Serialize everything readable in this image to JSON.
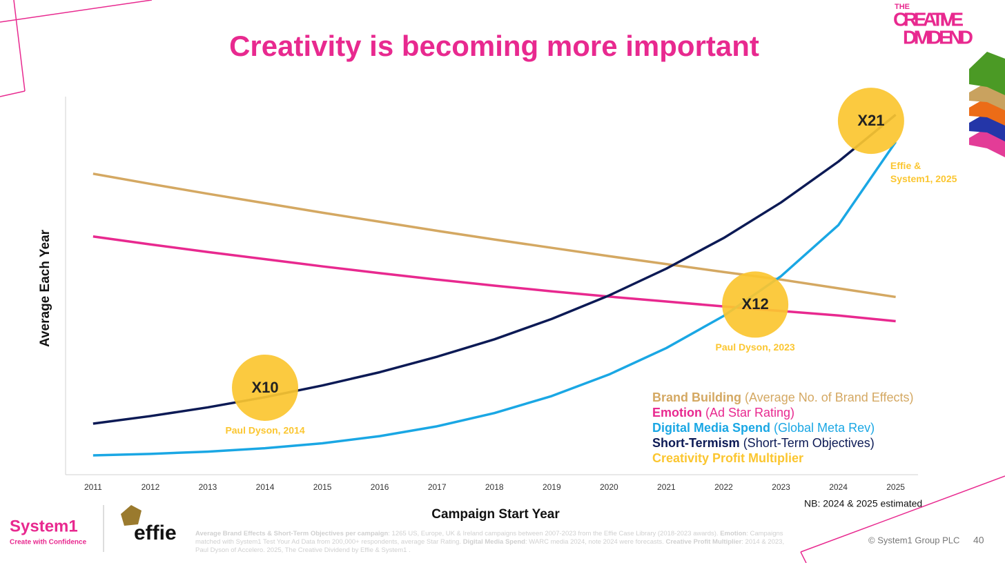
{
  "chart_data": {
    "type": "line",
    "title": "Creativity is becoming more important",
    "x_label": "Campaign Start Year",
    "y_label": "Average Each Year",
    "x": [
      2011,
      2012,
      2013,
      2014,
      2015,
      2016,
      2017,
      2018,
      2019,
      2020,
      2021,
      2022,
      2023,
      2024,
      2025
    ],
    "xlim": [
      2010.52,
      2025.39
    ],
    "xticks": [
      2011,
      2012,
      2013,
      2014,
      2015,
      2016,
      2017,
      2018,
      2019,
      2020,
      2021,
      2022,
      2023,
      2024,
      2025
    ],
    "ylim": [
      0,
      100
    ],
    "series": [
      {
        "name": "Brand Building",
        "measure": "(Average No. of Brand Effects)",
        "color": "#d4a862",
        "values": [
          79.6,
          76.9,
          74.3,
          71.8,
          69.3,
          66.9,
          64.5,
          62.2,
          60,
          57.8,
          55.7,
          53.6,
          51.6,
          49.3,
          47
        ]
      },
      {
        "name": "Emotion",
        "measure": "(Ad Star Rating)",
        "color": "#e8298f",
        "values": [
          63,
          60.9,
          58.9,
          57,
          55.1,
          53.3,
          51.6,
          50,
          48.5,
          47.1,
          45.8,
          44.5,
          43.3,
          42.1,
          40.6
        ]
      },
      {
        "name": "Digital Media Spend",
        "measure": "(Global Meta Rev)",
        "color": "#1aa7e4",
        "values": [
          5.1,
          5.5,
          6.1,
          7,
          8.3,
          10.2,
          12.8,
          16.3,
          20.8,
          26.5,
          33.5,
          42,
          52.5,
          66,
          88
        ]
      },
      {
        "name": "Short-Termism",
        "measure": "(Short-Term Objectives)",
        "color": "#0c1a55",
        "values": [
          13.5,
          15.5,
          17.8,
          20.5,
          23.6,
          27.1,
          31.2,
          35.8,
          41.2,
          47.4,
          54.5,
          62.6,
          72,
          82.8,
          95.2
        ]
      }
    ],
    "multiplier": {
      "name": "Creativity Profit Multiplier",
      "color": "#fbc630",
      "points": [
        {
          "x": 2014,
          "y": 23,
          "label": "X10",
          "source": "Paul Dyson, 2014"
        },
        {
          "x": 2022.55,
          "y": 45,
          "label": "X12",
          "source": "Paul Dyson, 2023"
        },
        {
          "x": 2024.57,
          "y": 93.6,
          "label": "X21",
          "source": "Effie & System1, 2025"
        }
      ]
    },
    "note": "NB: 2024 & 2025 estimated"
  },
  "logo": {
    "line1": "THE",
    "line2": "CREATIVE",
    "line3": "DIVIDEND"
  },
  "footer": {
    "brand": "System1",
    "tagline": "Create with Confidence",
    "partner": "effie",
    "sources": [
      {
        "text": "Average Brand Effects & Short-Term Objectives per campaign",
        "bold": true
      },
      {
        "text": ": 1265 US, Europe, UK & Ireland campaigns between 2007-2023 from the Effie Case Library (2018-2023 awards). ",
        "bold": false
      },
      {
        "text": "Emotion",
        "bold": true
      },
      {
        "text": ": Campaigns matched with System1 Test Your Ad Data from 200,000+ respondents, average Star Rating. ",
        "bold": false
      },
      {
        "text": "Digital Media Spend",
        "bold": true
      },
      {
        "text": ": WARC media 2024, note 2024 were forecasts. ",
        "bold": false
      },
      {
        "text": "Creative Profit Multiplier",
        "bold": true
      },
      {
        "text": ": 2014 & 2023, Paul Dyson of Accelero. 2025, The Creative Dividend by Effie & System1 .",
        "bold": false
      }
    ],
    "copyright": "© System1 Group PLC",
    "page": "40"
  }
}
